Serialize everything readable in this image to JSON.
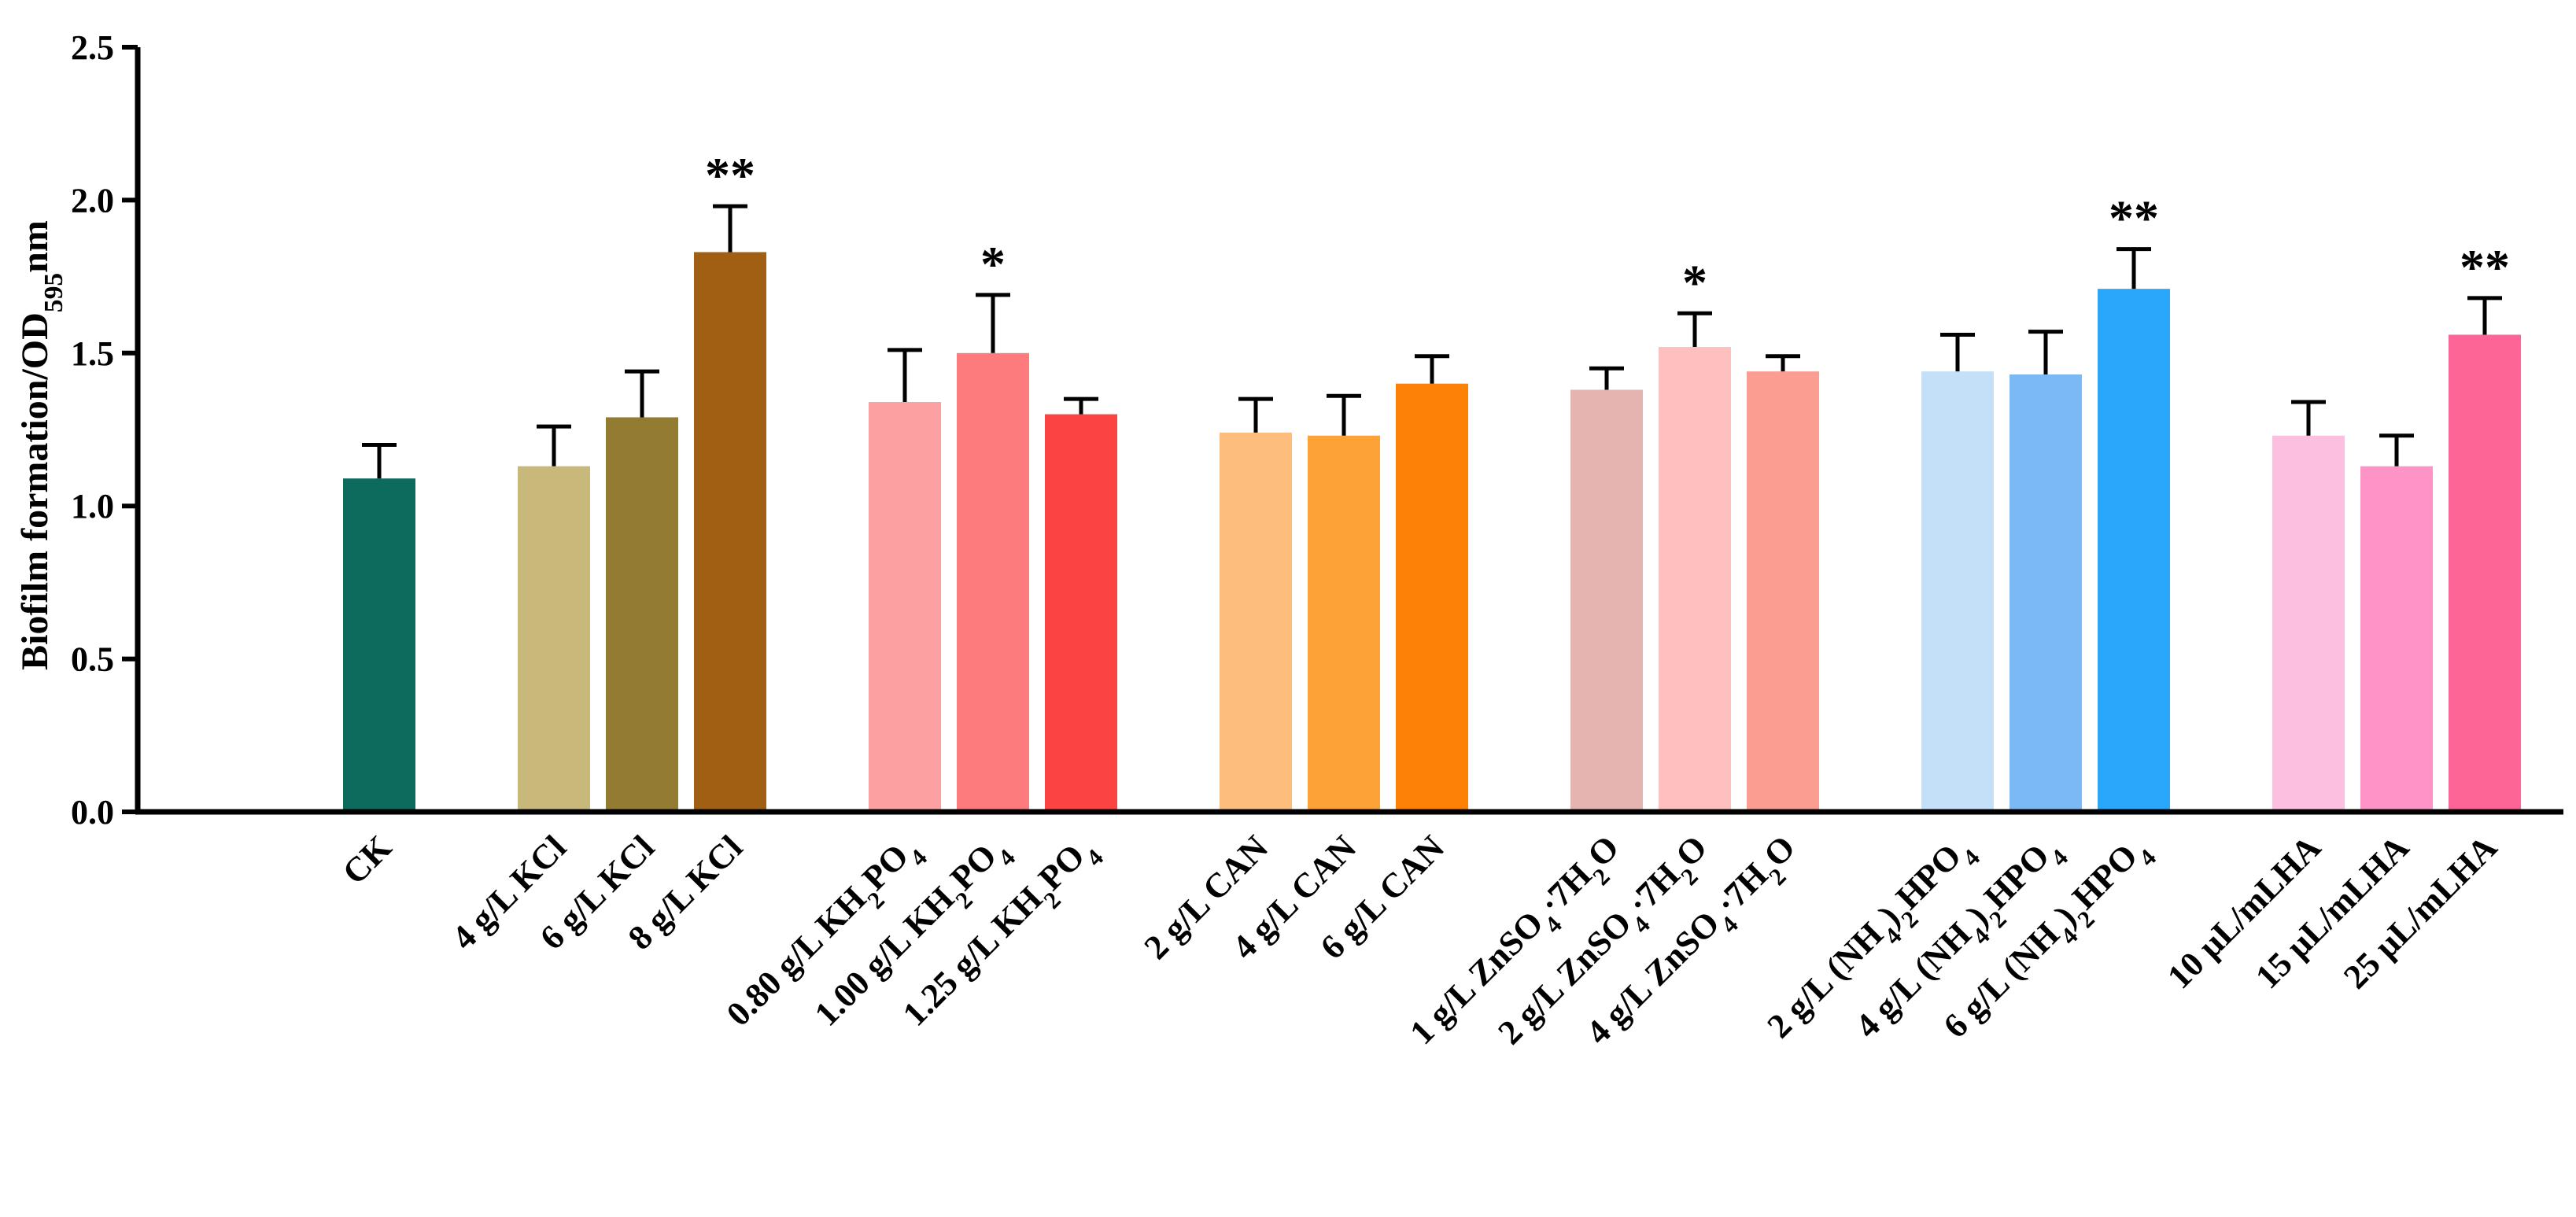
{
  "chart_data": {
    "type": "bar",
    "ylabel": "Biofilm formation/OD595nm",
    "ylim": [
      0,
      2.5
    ],
    "yticks": [
      "0.0",
      "0.5",
      "1.0",
      "1.5",
      "2.0",
      "2.5"
    ],
    "grid": false,
    "legend": "none",
    "categories": [
      "CK",
      "4 g/L KCl",
      "6 g/L KCl",
      "8 g/L KCl",
      "0.80 g/L KH2PO4",
      "1.00 g/L KH2PO4",
      "1.25 g/L KH2PO4",
      "2 g/L CAN",
      "4 g/L CAN",
      "6 g/L CAN",
      "1 g/L ZnSO4·7H2O",
      "2 g/L ZnSO4·7H2O",
      "4 g/L ZnSO4·7H2O",
      "2 g/L (NH4)2HPO4",
      "4 g/L (NH4)2HPO4",
      "6 g/L (NH4)2HPO4",
      "10 μL/mLHA",
      "15 μL/mLHA",
      "25 μL/mLHA"
    ],
    "groups": [
      1,
      2,
      2,
      2,
      3,
      3,
      3,
      4,
      4,
      4,
      5,
      5,
      5,
      6,
      6,
      6,
      7,
      7,
      7
    ],
    "values": [
      1.09,
      1.13,
      1.29,
      1.83,
      1.34,
      1.5,
      1.3,
      1.24,
      1.23,
      1.4,
      1.38,
      1.52,
      1.44,
      1.44,
      1.43,
      1.71,
      1.23,
      1.13,
      1.56
    ],
    "errors": [
      0.11,
      0.13,
      0.15,
      0.15,
      0.17,
      0.19,
      0.05,
      0.11,
      0.13,
      0.09,
      0.07,
      0.11,
      0.05,
      0.12,
      0.14,
      0.13,
      0.11,
      0.1,
      0.12
    ],
    "significance": [
      "",
      "",
      "",
      "**",
      "",
      "*",
      "",
      "",
      "",
      "",
      "",
      "*",
      "",
      "",
      "",
      "**",
      "",
      "",
      "**"
    ],
    "colors": [
      "#0d6b5e",
      "#c8b87a",
      "#937c32",
      "#a05f12",
      "#fca0a1",
      "#fd7b7c",
      "#fb4342",
      "#fdbd7d",
      "#fda236",
      "#fd8106",
      "#e5b3b0",
      "#fdc0bf",
      "#fc9d92",
      "#c4e0f9",
      "#7ab9f4",
      "#2aa6fa",
      "#fdbfdf",
      "#fd93c6",
      "#fd6596"
    ]
  }
}
